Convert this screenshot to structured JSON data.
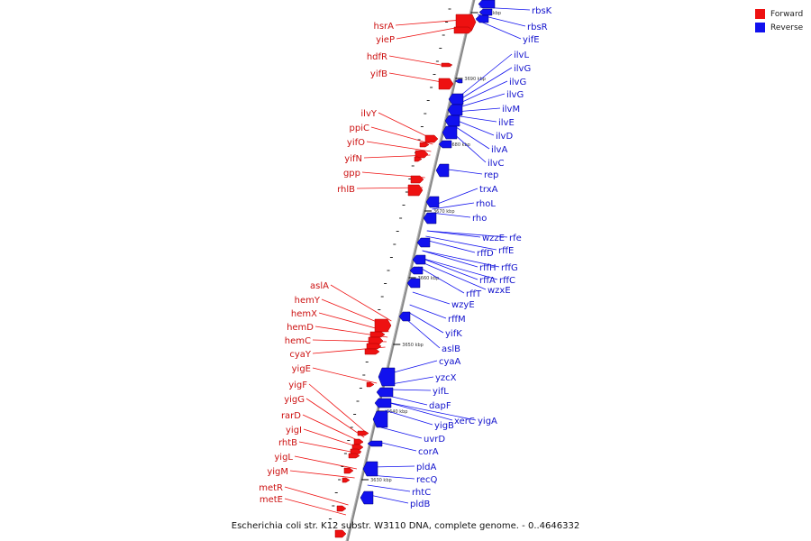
{
  "legend": {
    "forward_label": "Forward",
    "reverse_label": "Reverse",
    "forward_color": "#ee1111",
    "reverse_color": "#1111ee"
  },
  "caption": "Escherichia coli str. K12 substr. W3110 DNA, complete genome. - 0..4646332",
  "ruler_labels": [
    "3700 kbp",
    "3690 kbp",
    "3680 kbp",
    "3670 kbp",
    "3660 kbp",
    "3650 kbp",
    "3640 kbp",
    "3630 kbp"
  ],
  "forward_genes": [
    "hsrA",
    "yieP",
    "hdfR",
    "yifB",
    "ilvY",
    "ppiC",
    "yifO",
    "yifN",
    "gpp",
    "rhlB",
    "aslA",
    "hemY",
    "hemX",
    "hemD",
    "hemC",
    "cyaY",
    "yigE",
    "yigF",
    "yigG",
    "rarD",
    "yigI",
    "rhtB",
    "yigL",
    "yigM",
    "metR",
    "metE"
  ],
  "reverse_genes": [
    "rbsK",
    "rbsR",
    "yifE",
    "ilvL",
    "ilvG",
    "ilvG",
    "ilvG",
    "ilvM",
    "ilvE",
    "ilvD",
    "ilvA",
    "ilvC",
    "rep",
    "trxA",
    "rhoL",
    "rho",
    "wzzE",
    "rfe",
    "rffE",
    "rffD",
    "rffH",
    "rffG",
    "rffA",
    "rffC",
    "rffT",
    "wzxE",
    "wzyE",
    "rffM",
    "yifK",
    "aslB",
    "cyaA",
    "yzcX",
    "yifL",
    "dapF",
    "xerC",
    "yigA",
    "yigB",
    "uvrD",
    "corA",
    "pldA",
    "recQ",
    "rhtC",
    "pldB"
  ],
  "legend_title": ""
}
